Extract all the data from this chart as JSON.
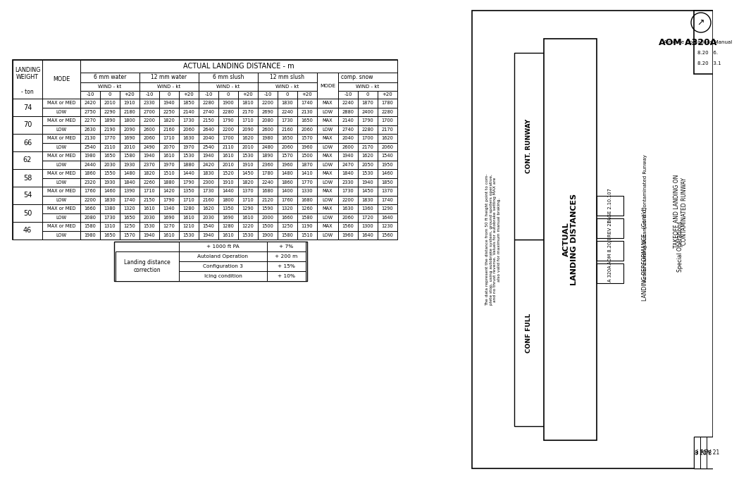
{
  "title_main": "ACTUAL LANDING DISTANCE - m",
  "landing_weights": [
    74,
    70,
    66,
    62,
    58,
    54,
    50,
    46
  ],
  "cond_names": [
    "6 mm water",
    "12 mm water",
    "6 mm slush",
    "12 mm slush",
    "comp. snow"
  ],
  "wind_labels": [
    "-10",
    "0",
    "+20"
  ],
  "data": {
    "74": {
      "MAX or MED": {
        "6mm_water": [
          2420,
          2010,
          1910
        ],
        "12mm_water": [
          2330,
          1940,
          1850
        ],
        "6mm_slush": [
          2280,
          1900,
          1810
        ],
        "12mm_slush": [
          2200,
          1830,
          1740
        ],
        "comp_snow": [
          2240,
          1870,
          1780
        ]
      },
      "LOW": {
        "6mm_water": [
          2750,
          2290,
          2180
        ],
        "12mm_water": [
          2700,
          2250,
          2140
        ],
        "6mm_slush": [
          2740,
          2280,
          2170
        ],
        "12mm_slush": [
          2690,
          2240,
          2130
        ],
        "comp_snow": [
          2880,
          2400,
          2280
        ]
      }
    },
    "70": {
      "MAX or MED": {
        "6mm_water": [
          2270,
          1890,
          1800
        ],
        "12mm_water": [
          2200,
          1820,
          1730
        ],
        "6mm_slush": [
          2150,
          1790,
          1710
        ],
        "12mm_slush": [
          2080,
          1730,
          1650
        ],
        "comp_snow": [
          2140,
          1790,
          1700
        ]
      },
      "LOW": {
        "6mm_water": [
          2630,
          2190,
          2090
        ],
        "12mm_water": [
          2600,
          2160,
          2060
        ],
        "6mm_slush": [
          2640,
          2200,
          2090
        ],
        "12mm_slush": [
          2600,
          2160,
          2060
        ],
        "comp_snow": [
          2740,
          2280,
          2170
        ]
      }
    },
    "66": {
      "MAX or MED": {
        "6mm_water": [
          2130,
          1770,
          1690
        ],
        "12mm_water": [
          2060,
          1710,
          1630
        ],
        "6mm_slush": [
          2040,
          1700,
          1620
        ],
        "12mm_slush": [
          1980,
          1650,
          1570
        ],
        "comp_snow": [
          2040,
          1700,
          1620
        ]
      },
      "LOW": {
        "6mm_water": [
          2540,
          2110,
          2010
        ],
        "12mm_water": [
          2490,
          2070,
          1970
        ],
        "6mm_slush": [
          2540,
          2110,
          2010
        ],
        "12mm_slush": [
          2480,
          2060,
          1960
        ],
        "comp_snow": [
          2600,
          2170,
          2060
        ]
      }
    },
    "62": {
      "MAX or MED": {
        "6mm_water": [
          1980,
          1650,
          1580
        ],
        "12mm_water": [
          1940,
          1610,
          1530
        ],
        "6mm_slush": [
          1940,
          1610,
          1530
        ],
        "12mm_slush": [
          1890,
          1570,
          1500
        ],
        "comp_snow": [
          1940,
          1620,
          1540
        ]
      },
      "LOW": {
        "6mm_water": [
          2440,
          2030,
          1930
        ],
        "12mm_water": [
          2370,
          1970,
          1880
        ],
        "6mm_slush": [
          2420,
          2010,
          1910
        ],
        "12mm_slush": [
          2360,
          1960,
          1870
        ],
        "comp_snow": [
          2470,
          2050,
          1950
        ]
      }
    },
    "58": {
      "MAX or MED": {
        "6mm_water": [
          1860,
          1550,
          1480
        ],
        "12mm_water": [
          1820,
          1510,
          1440
        ],
        "6mm_slush": [
          1830,
          1520,
          1450
        ],
        "12mm_slush": [
          1780,
          1480,
          1410
        ],
        "comp_snow": [
          1840,
          1530,
          1460
        ]
      },
      "LOW": {
        "6mm_water": [
          2320,
          1930,
          1840
        ],
        "12mm_water": [
          2260,
          1880,
          1790
        ],
        "6mm_slush": [
          2300,
          1910,
          1820
        ],
        "12mm_slush": [
          2240,
          1860,
          1770
        ],
        "comp_snow": [
          2330,
          1940,
          1850
        ]
      }
    },
    "54": {
      "MAX or MED": {
        "6mm_water": [
          1760,
          1460,
          1390
        ],
        "12mm_water": [
          1710,
          1420,
          1350
        ],
        "6mm_slush": [
          1730,
          1440,
          1370
        ],
        "12mm_slush": [
          1680,
          1400,
          1330
        ],
        "comp_snow": [
          1730,
          1450,
          1370
        ]
      },
      "LOW": {
        "6mm_water": [
          2200,
          1830,
          1740
        ],
        "12mm_water": [
          2150,
          1790,
          1710
        ],
        "6mm_slush": [
          2160,
          1800,
          1710
        ],
        "12mm_slush": [
          2120,
          1760,
          1680
        ],
        "comp_snow": [
          2200,
          1830,
          1740
        ]
      }
    },
    "50": {
      "MAX or MED": {
        "6mm_water": [
          1660,
          1380,
          1320
        ],
        "12mm_water": [
          1610,
          1340,
          1280
        ],
        "6mm_slush": [
          1620,
          1350,
          1290
        ],
        "12mm_slush": [
          1590,
          1320,
          1260
        ],
        "comp_snow": [
          1630,
          1360,
          1290
        ]
      },
      "LOW": {
        "6mm_water": [
          2080,
          1730,
          1650
        ],
        "12mm_water": [
          2030,
          1690,
          1610
        ],
        "6mm_slush": [
          2030,
          1690,
          1610
        ],
        "12mm_slush": [
          2000,
          1660,
          1580
        ],
        "comp_snow": [
          2060,
          1720,
          1640
        ]
      }
    },
    "46": {
      "MAX or MED": {
        "6mm_water": [
          1580,
          1310,
          1250
        ],
        "12mm_water": [
          1530,
          1270,
          1210
        ],
        "6mm_slush": [
          1540,
          1280,
          1220
        ],
        "12mm_slush": [
          1500,
          1250,
          1190
        ],
        "comp_snow": [
          1560,
          1300,
          1230
        ]
      },
      "LOW": {
        "6mm_water": [
          1980,
          1650,
          1570
        ],
        "12mm_water": [
          1940,
          1610,
          1530
        ],
        "6mm_slush": [
          1940,
          1610,
          1530
        ],
        "12mm_slush": [
          1900,
          1580,
          1510
        ],
        "comp_snow": [
          1960,
          1640,
          1560
        ]
      }
    }
  },
  "corrections": [
    [
      "+ 1000 ft PA",
      "+ 7%"
    ],
    [
      "Autoland Operation",
      "+ 200 m"
    ],
    [
      "Configuration 3",
      "+ 15%"
    ],
    [
      "Icing condition",
      "+ 10%"
    ]
  ],
  "note_text": "The data represent the distance from 50 ft height point to com-\nplete stop, using autobrake system, ground spoilers operative,\nand no thrust reverse. Values for autobrake setting MAX are\nalso valid for maximum manual braking.",
  "rp_title": "AOM A320A",
  "rp_subtitle": "Airplane Operations Manual",
  "rp_s1": "8.20   6.",
  "rp_s2": "8.20   3.1",
  "rp_sops": "Special Operations",
  "rp_takeoff": "TAKEOFF AND LANDING ON\nCONTAMINATED RUNWAY",
  "rp_lp": "LANDING PERFORMANCE   (Cont'd)",
  "rp_aldc": "Actual Landing Distances on Contaminated Runway",
  "rp_ald": "ACTUAL\nLANDING DISTANCES",
  "rp_cr": "CONT. RUNWAY",
  "rp_cf": "CONF FULL",
  "rp_ref1": "A 320A",
  "rp_ref2": "AOM 8.20/8",
  "rp_rev": "REV 21",
  "rp_page": "PAGE 2.10.107",
  "rp_pgnum": "8 20/8",
  "rp_revnum": "REV 21",
  "rp_ii": "ii"
}
